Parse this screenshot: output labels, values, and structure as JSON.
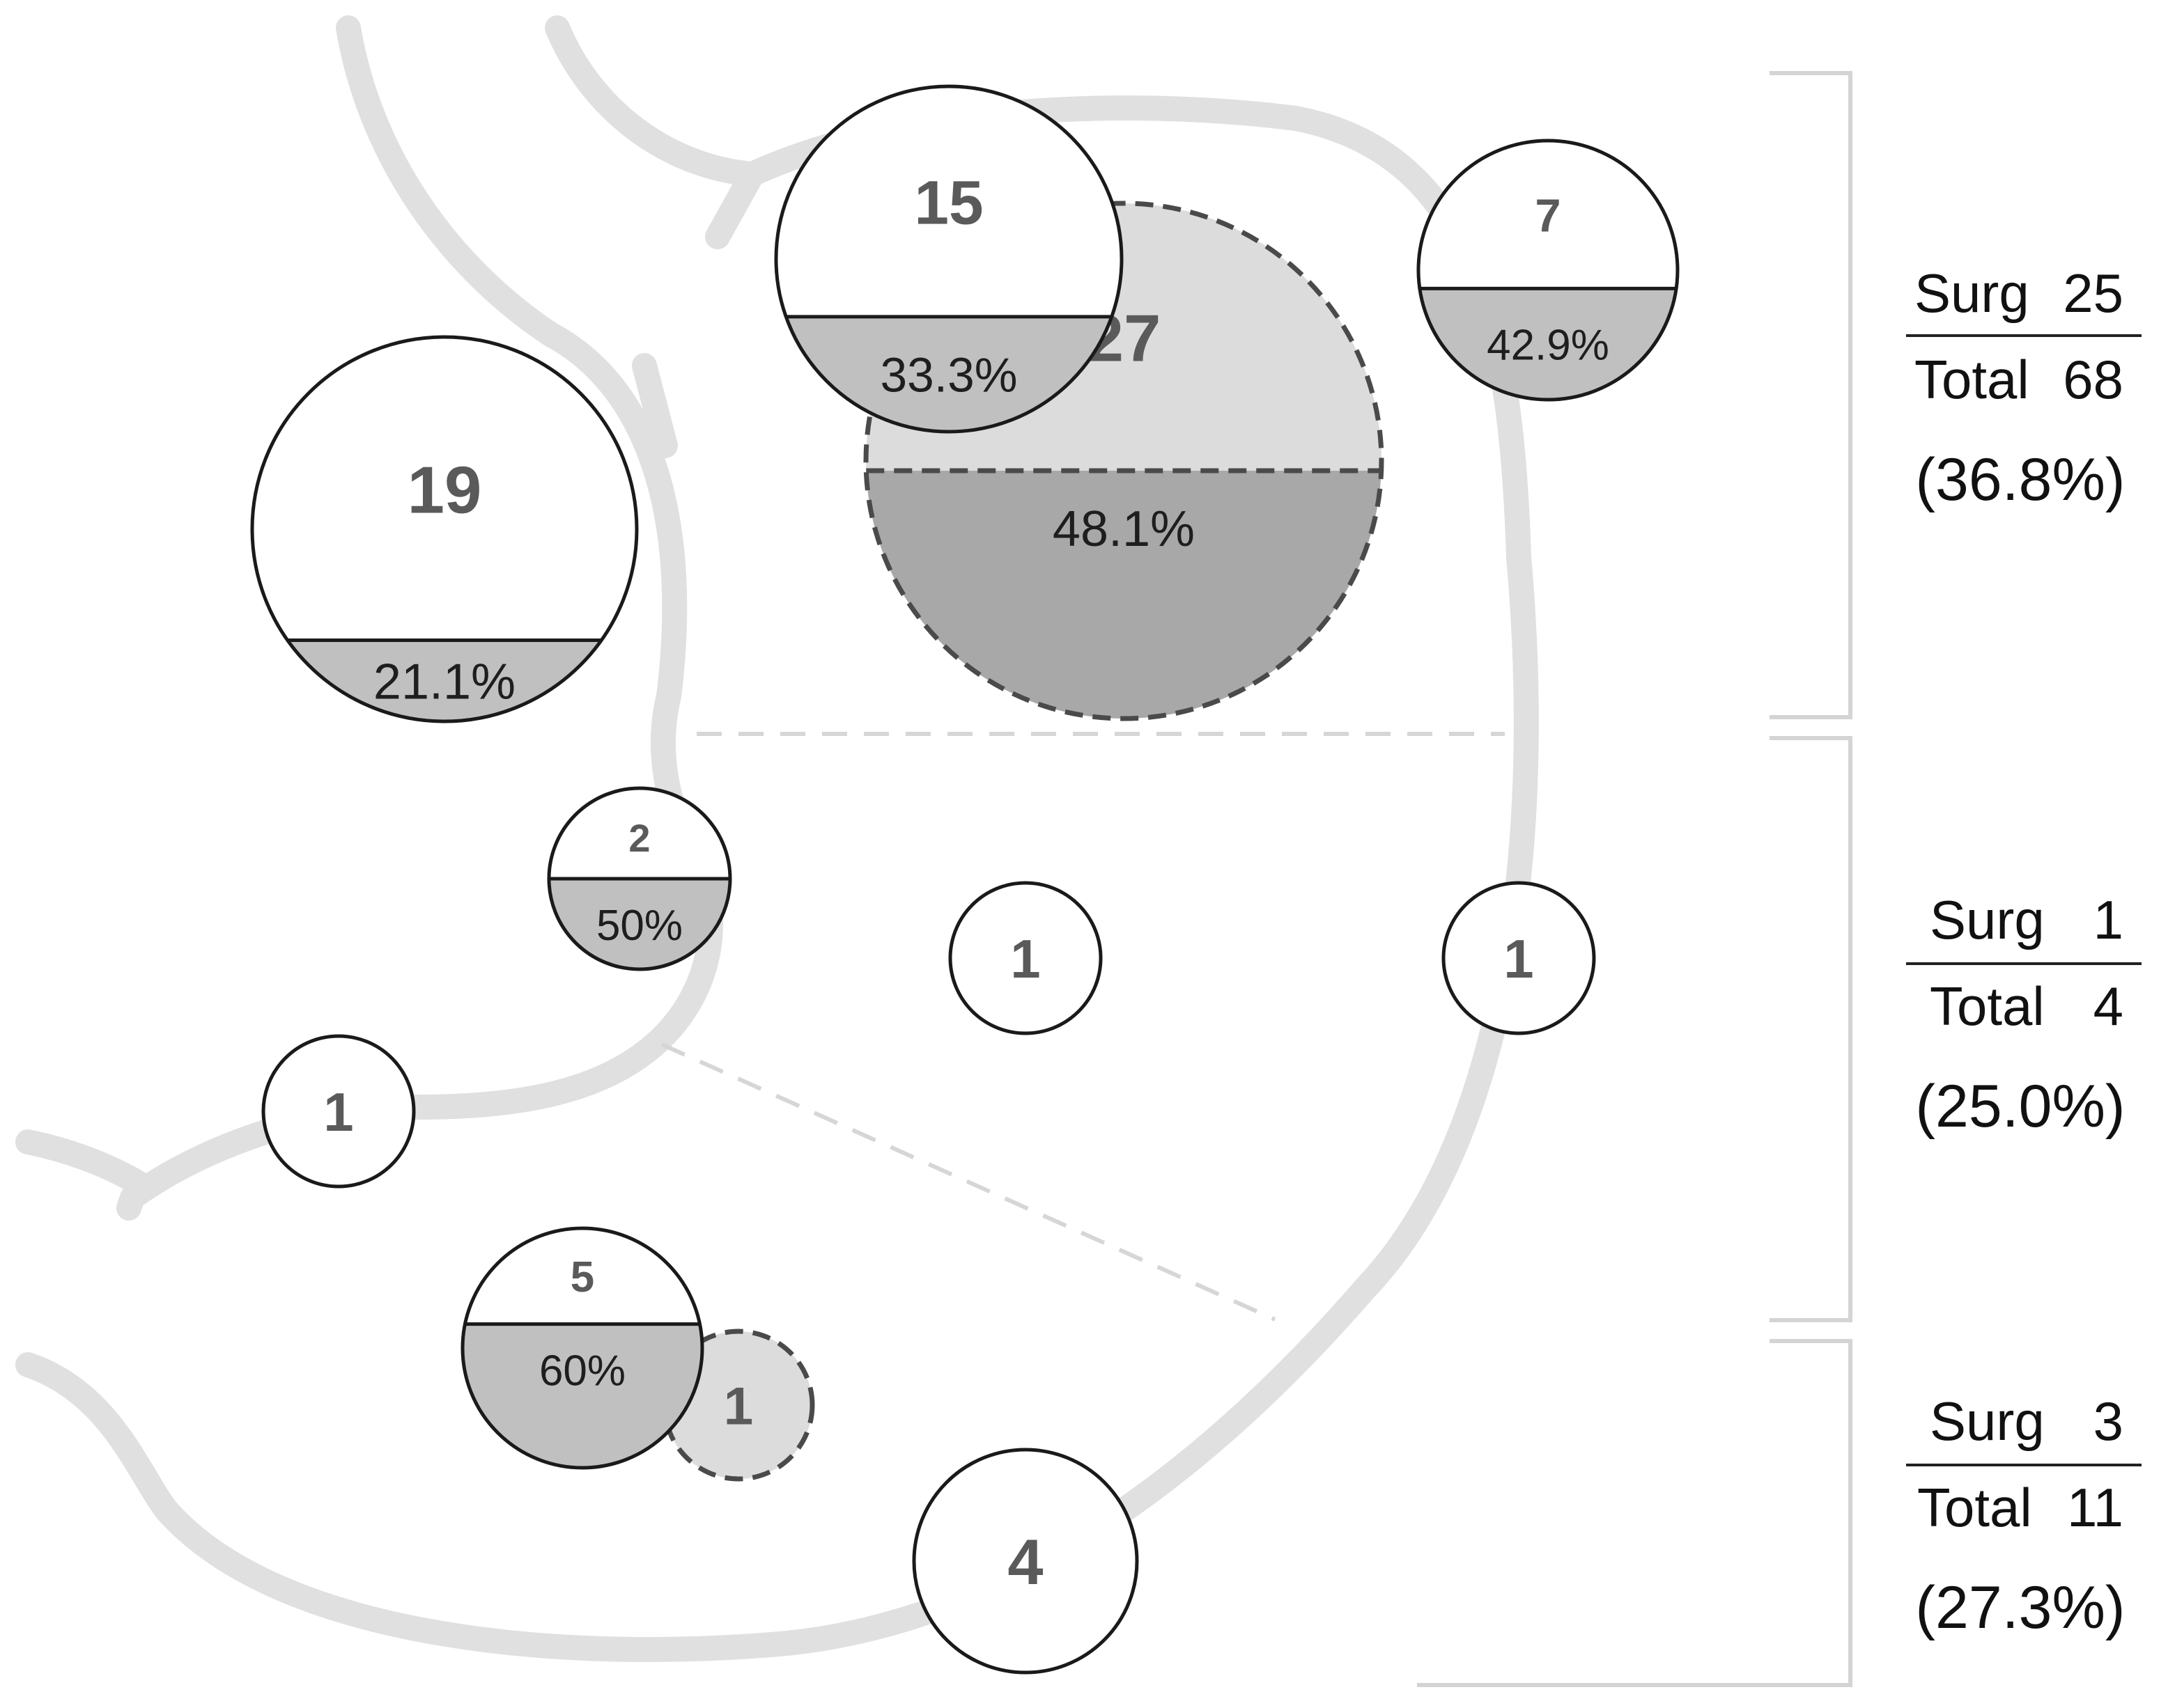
{
  "colors": {
    "stomach_outline": "#e0e0e0",
    "divider": "#d6d6d6",
    "bracket": "#d4d4d4",
    "circle_stroke": "#1a1a1a",
    "dashed_stroke": "#4a4a4a",
    "surgery_fill": "#c0c0c0",
    "dashed_surgery_fill": "#a8a8a8",
    "dashed_top_fill": "#dcdcdc",
    "count_text": "#5a5a5a",
    "pct_text": "#1e1e1e"
  },
  "lesions": [
    {
      "id": "l15",
      "count": "15",
      "surgery_pct": "33.3%",
      "surgery_fraction": 0.333,
      "style": "solid"
    },
    {
      "id": "l27",
      "count": "27",
      "surgery_pct": "48.1%",
      "surgery_fraction": 0.481,
      "style": "dashed"
    },
    {
      "id": "l7",
      "count": "7",
      "surgery_pct": "42.9%",
      "surgery_fraction": 0.429,
      "style": "solid"
    },
    {
      "id": "l19",
      "count": "19",
      "surgery_pct": "21.1%",
      "surgery_fraction": 0.211,
      "style": "solid"
    },
    {
      "id": "l2",
      "count": "2",
      "surgery_pct": "50%",
      "surgery_fraction": 0.5,
      "style": "solid"
    },
    {
      "id": "l1a",
      "count": "1",
      "surgery_pct": "",
      "surgery_fraction": 0,
      "style": "solid"
    },
    {
      "id": "l1b",
      "count": "1",
      "surgery_pct": "",
      "surgery_fraction": 0,
      "style": "solid"
    },
    {
      "id": "l1c",
      "count": "1",
      "surgery_pct": "",
      "surgery_fraction": 0,
      "style": "solid"
    },
    {
      "id": "l5",
      "count": "5",
      "surgery_pct": "60%",
      "surgery_fraction": 0.6,
      "style": "solid"
    },
    {
      "id": "l1d",
      "count": "1",
      "surgery_pct": "",
      "surgery_fraction": 0,
      "style": "dashed"
    },
    {
      "id": "l4",
      "count": "4",
      "surgery_pct": "",
      "surgery_fraction": 0,
      "style": "solid"
    }
  ],
  "regions": [
    {
      "id": "upper",
      "surg_label": "Surg",
      "surg_value": "25",
      "total_label": "Total",
      "total_value": "68",
      "percent": "(36.8%)"
    },
    {
      "id": "middle",
      "surg_label": "Surg",
      "surg_value": "1",
      "total_label": "Total",
      "total_value": "4",
      "percent": "(25.0%)"
    },
    {
      "id": "lower",
      "surg_label": "Surg",
      "surg_value": "3",
      "total_label": "Total",
      "total_value": "11",
      "percent": "(27.3%)"
    }
  ]
}
